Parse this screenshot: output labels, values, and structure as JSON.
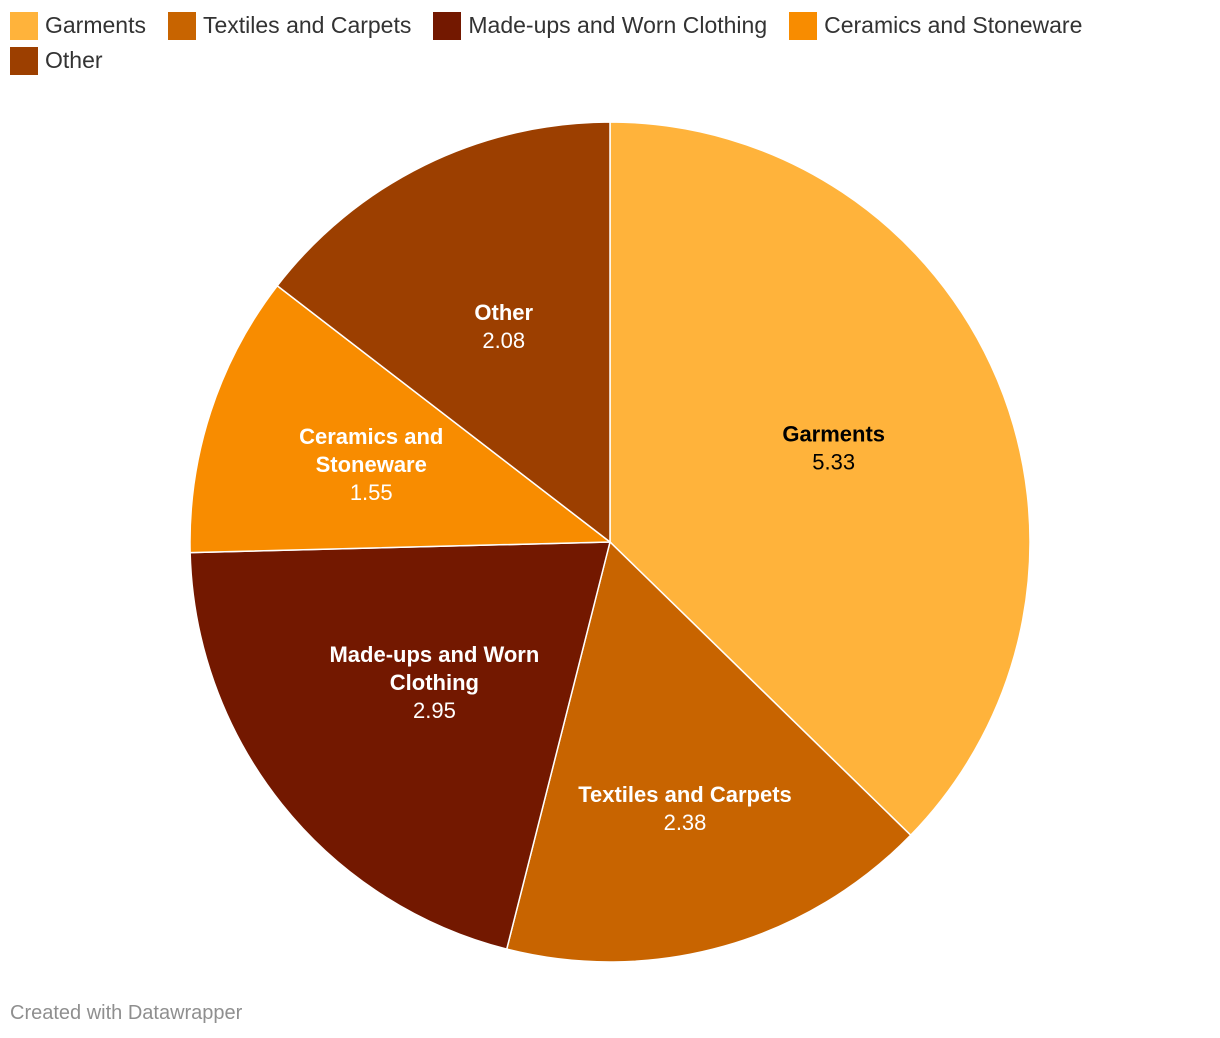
{
  "chart_data": {
    "type": "pie",
    "title": "",
    "slices": [
      {
        "label": "Garments",
        "label_lines": [
          "Garments"
        ],
        "value": 5.33,
        "display": "5.33",
        "color": "#ffb33b",
        "text_color": "#000000"
      },
      {
        "label": "Textiles and Carpets",
        "label_lines": [
          "Textiles and Carpets"
        ],
        "value": 2.38,
        "display": "2.38",
        "color": "#c86400",
        "text_color": "#ffffff"
      },
      {
        "label": "Made-ups and Worn Clothing",
        "label_lines": [
          "Made-ups and Worn",
          "Clothing"
        ],
        "value": 2.95,
        "display": "2.95",
        "color": "#731800",
        "text_color": "#ffffff"
      },
      {
        "label": "Ceramics and Stoneware",
        "label_lines": [
          "Ceramics and",
          "Stoneware"
        ],
        "value": 1.55,
        "display": "1.55",
        "color": "#f88c00",
        "text_color": "#ffffff"
      },
      {
        "label": "Other",
        "label_lines": [
          "Other"
        ],
        "value": 2.08,
        "display": "2.08",
        "color": "#9c3f00",
        "text_color": "#ffffff"
      }
    ],
    "legend": [
      "Garments",
      "Textiles and Carpets",
      "Made-ups and Worn Clothing",
      "Ceramics and Stoneware",
      "Other"
    ],
    "legend_position": "top-left"
  },
  "footer": {
    "credit": "Created with Datawrapper"
  }
}
